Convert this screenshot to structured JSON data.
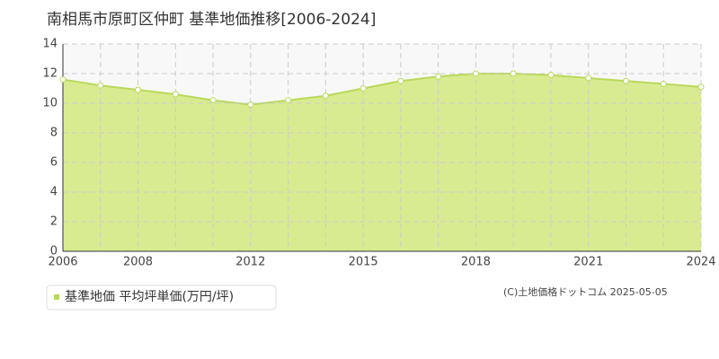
{
  "chart_data": {
    "type": "area",
    "title": "南相馬市原町区仲町 基準地価推移[2006-2024]",
    "categories": [
      "2006",
      null,
      "2008",
      null,
      null,
      "2012",
      null,
      null,
      "2015",
      null,
      null,
      "2018",
      null,
      null,
      "2021",
      null,
      null,
      "2024"
    ],
    "series": [
      {
        "name": "基準地価 平均坪単価(万円/坪)",
        "color": "#b9d95a",
        "values": [
          11.6,
          11.2,
          10.9,
          10.6,
          10.2,
          9.9,
          10.2,
          10.5,
          11.0,
          11.5,
          11.8,
          12.0,
          12.0,
          11.9,
          11.7,
          11.5,
          11.3,
          11.1
        ]
      }
    ],
    "ylim": [
      0,
      14
    ],
    "yticks": [
      0,
      2,
      4,
      6,
      8,
      10,
      12,
      14
    ],
    "grid": true,
    "credit": "(C)土地価格ドットコム 2025-05-05"
  }
}
